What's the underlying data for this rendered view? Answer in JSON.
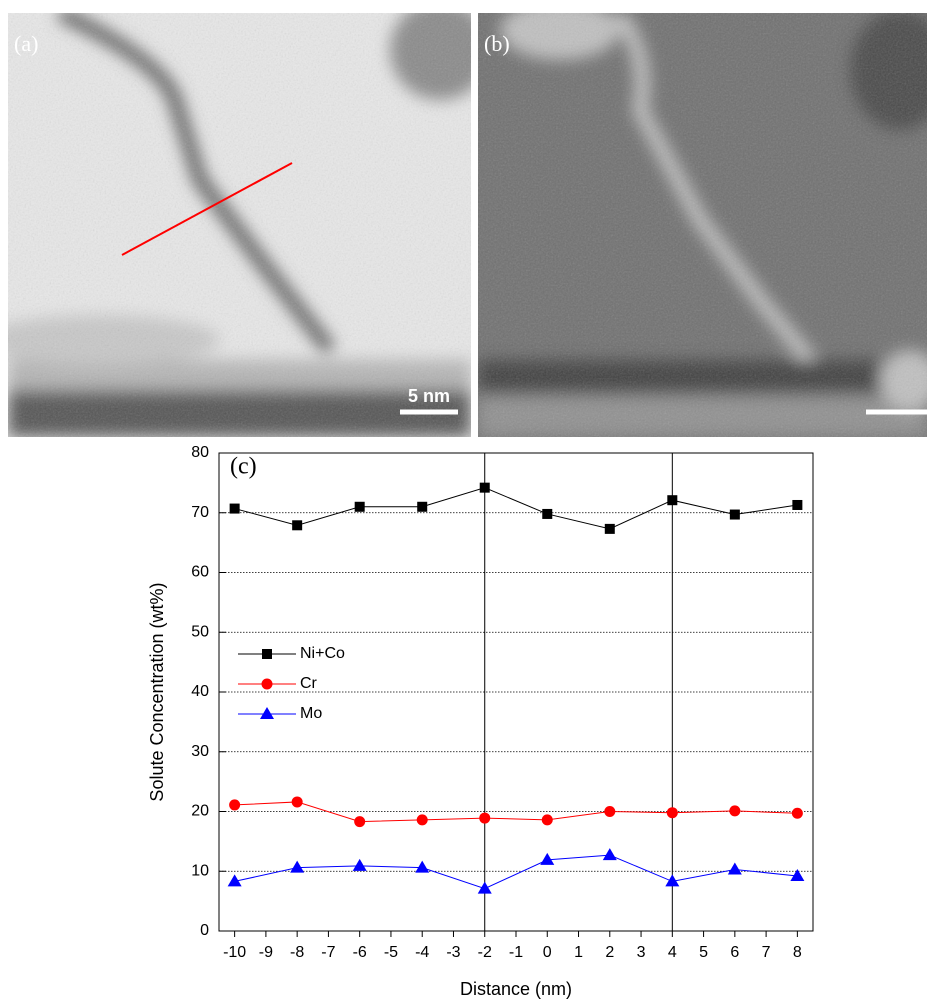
{
  "panels": {
    "a_label": "(a)",
    "b_label": "(b)",
    "scale_bar": "5 nm"
  },
  "chart_data": {
    "type": "line",
    "annotation": "(c)",
    "x_label": "Distance (nm)",
    "y_label": "Solute Concentration (wt%)",
    "x": [
      -10,
      -8,
      -6,
      -4,
      -2,
      0,
      2,
      4,
      6,
      8
    ],
    "series": [
      {
        "name": "Ni+Co",
        "color": "#000000",
        "marker": "square",
        "values": [
          70.7,
          67.9,
          71,
          71,
          74.2,
          69.8,
          67.3,
          72.1,
          69.7,
          71.3
        ]
      },
      {
        "name": "Cr",
        "color": "#ff0000",
        "marker": "circle",
        "values": [
          21.1,
          21.6,
          18.3,
          18.6,
          18.9,
          18.6,
          20,
          19.8,
          20.1,
          19.7
        ]
      },
      {
        "name": "Mo",
        "color": "#0000ff",
        "marker": "triangle",
        "values": [
          8.3,
          10.6,
          10.9,
          10.6,
          7.1,
          11.9,
          12.7,
          8.3,
          10.3,
          9.2
        ]
      }
    ],
    "xlim": [
      -10.5,
      8.5
    ],
    "xticks": [
      -10,
      -9,
      -8,
      -7,
      -6,
      -5,
      -4,
      -3,
      -2,
      -1,
      0,
      1,
      2,
      3,
      4,
      5,
      6,
      7,
      8
    ],
    "ylim": [
      0,
      80
    ],
    "yticks": [
      0,
      10,
      20,
      30,
      40,
      50,
      60,
      70,
      80
    ],
    "grid": true,
    "vlines": [
      -2,
      4
    ],
    "legend": "left"
  }
}
